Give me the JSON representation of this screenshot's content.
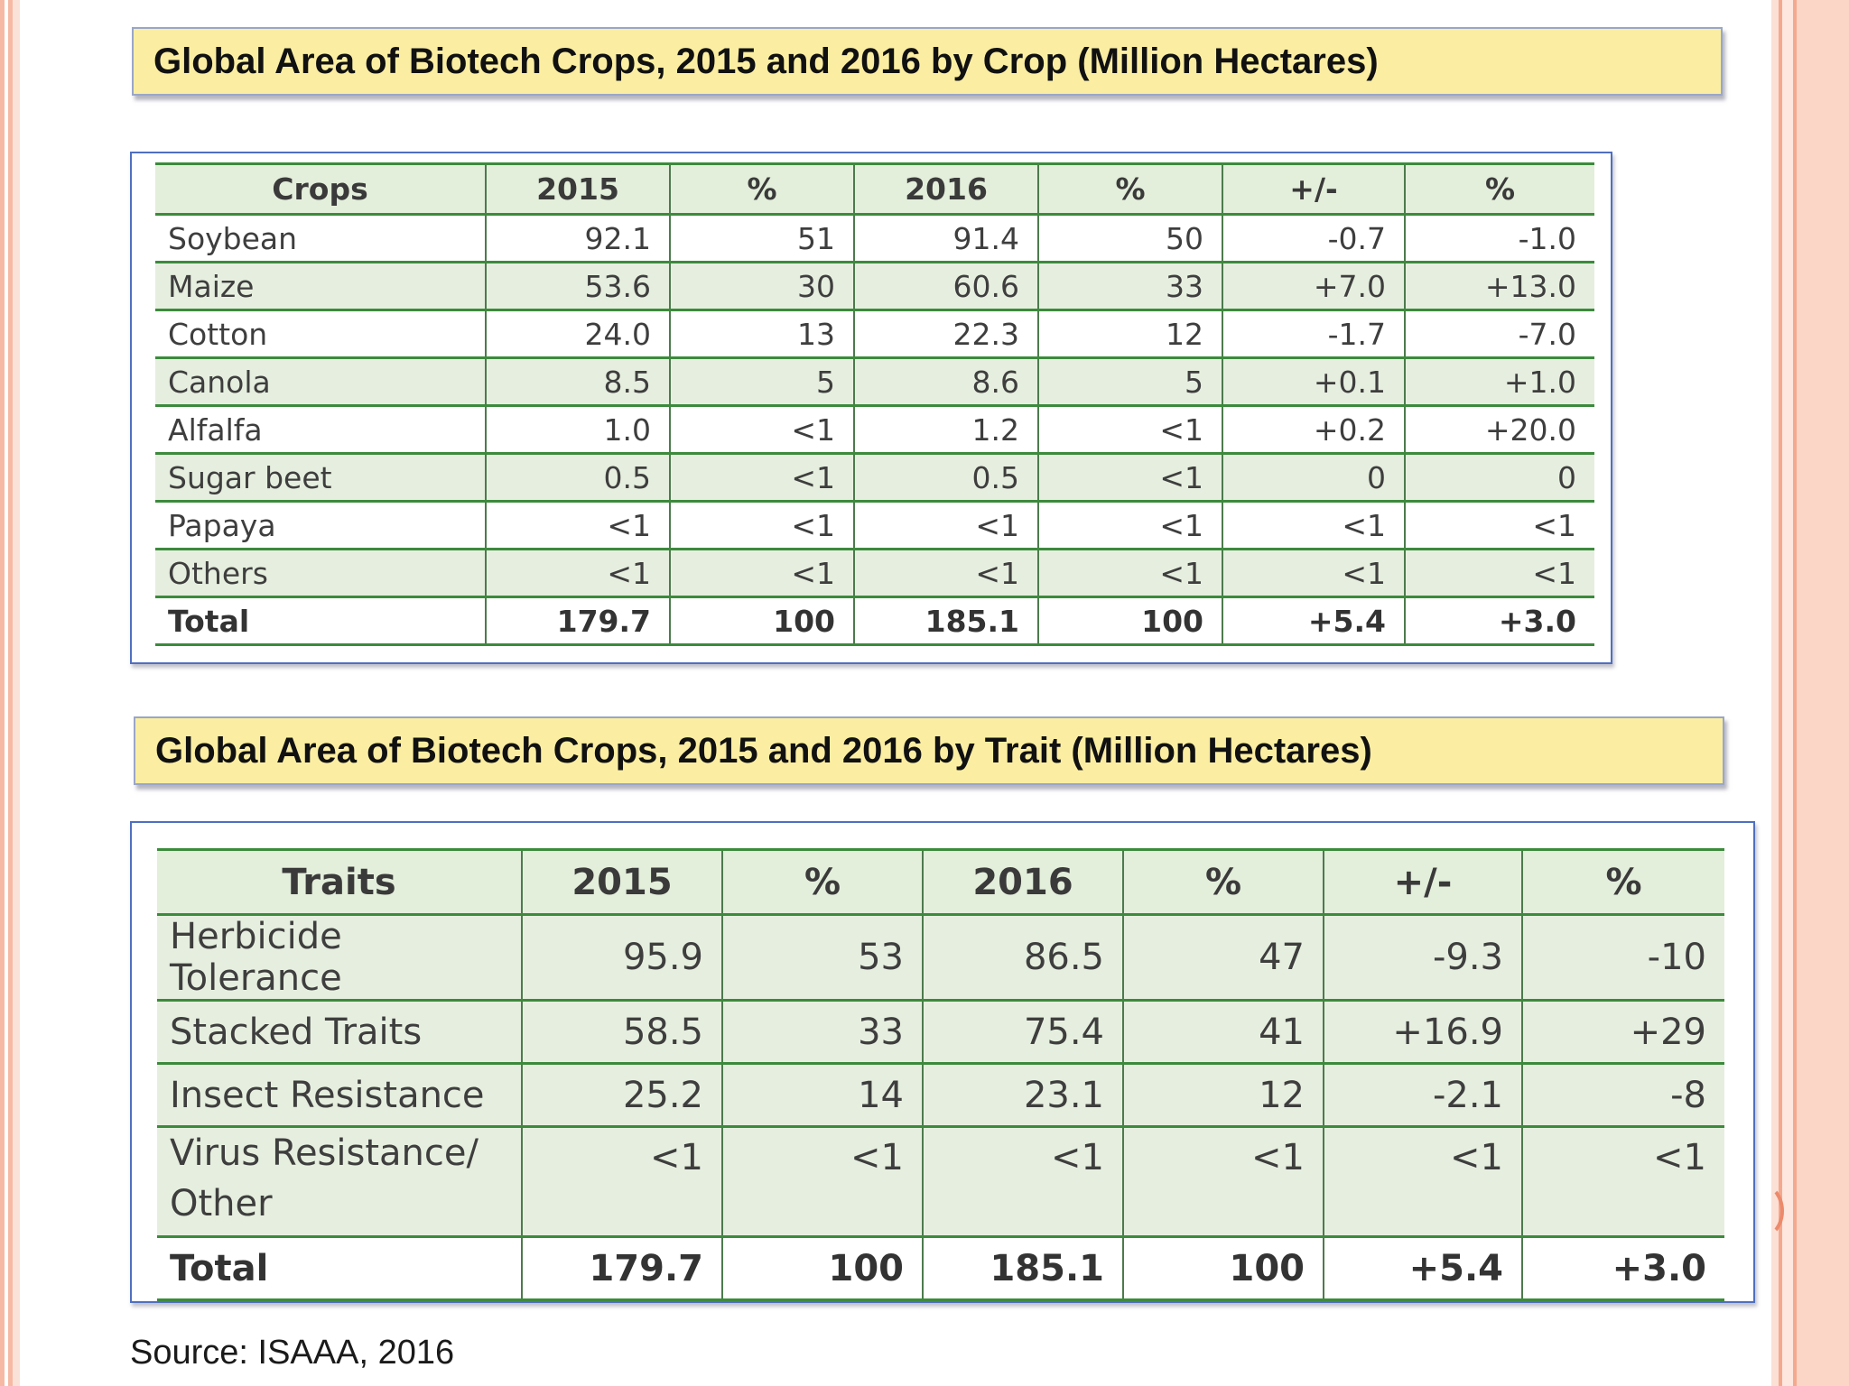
{
  "crop_title": "Global Area of Biotech Crops, 2015 and 2016 by Crop (Million Hectares)",
  "trait_title": "Global Area of Biotech Crops, 2015 and 2016 by Trait (Million Hectares)",
  "crop_table": {
    "headers": [
      "Crops",
      "2015",
      "%",
      "2016",
      "%",
      "+/-",
      "%"
    ],
    "rows": [
      [
        "Soybean",
        "92.1",
        "51",
        "91.4",
        "50",
        "-0.7",
        "-1.0"
      ],
      [
        "Maize",
        "53.6",
        "30",
        "60.6",
        "33",
        "+7.0",
        "+13.0"
      ],
      [
        "Cotton",
        "24.0",
        "13",
        "22.3",
        "12",
        "-1.7",
        "-7.0"
      ],
      [
        "Canola",
        "8.5",
        "5",
        "8.6",
        "5",
        "+0.1",
        "+1.0"
      ],
      [
        "Alfalfa",
        "1.0",
        "<1",
        "1.2",
        "<1",
        "+0.2",
        "+20.0"
      ],
      [
        "Sugar beet",
        "0.5",
        "<1",
        "0.5",
        "<1",
        "0",
        "0"
      ],
      [
        "Papaya",
        "<1",
        "<1",
        "<1",
        "<1",
        "<1",
        "<1"
      ],
      [
        "Others",
        "<1",
        "<1",
        "<1",
        "<1",
        "<1",
        "<1"
      ],
      [
        "Total",
        "179.7",
        "100",
        "185.1",
        "100",
        "+5.4",
        "+3.0"
      ]
    ]
  },
  "trait_table": {
    "headers": [
      "Traits",
      "2015",
      "%",
      "2016",
      "%",
      "+/-",
      "%"
    ],
    "rows": [
      [
        "Herbicide Tolerance",
        "95.9",
        "53",
        "86.5",
        "47",
        "-9.3",
        "-10"
      ],
      [
        "Stacked Traits",
        "58.5",
        "33",
        "75.4",
        "41",
        "+16.9",
        "+29"
      ],
      [
        "Insect Resistance",
        "25.2",
        "14",
        "23.1",
        "12",
        "-2.1",
        "-8"
      ],
      [
        "Virus Resistance/ Other",
        "<1",
        "<1",
        "<1",
        "<1",
        "<1",
        "<1"
      ],
      [
        "Total",
        "179.7",
        "100",
        "185.1",
        "100",
        "+5.4",
        "+3.0"
      ]
    ]
  },
  "source": "Source: ISAAA, 2016",
  "colors": {
    "banner_fill": "#fbeea2",
    "table_border": "#4f6fc0",
    "row_shade": "#e6efdf",
    "rule": "#3c8a3c",
    "frame": "#f4a98f"
  }
}
